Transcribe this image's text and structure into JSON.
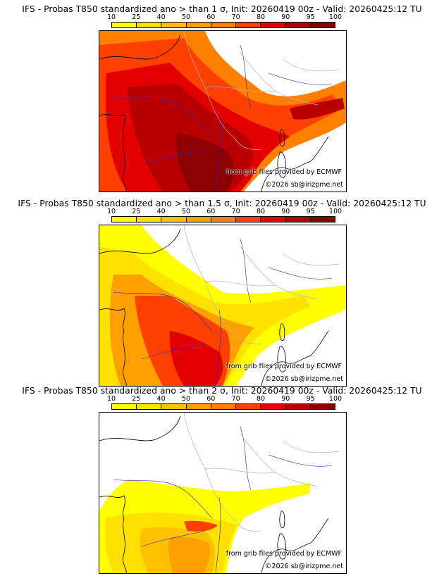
{
  "colors": {
    "scale": [
      "#ffff00",
      "#ffe100",
      "#ffc000",
      "#ff9f00",
      "#ff7f00",
      "#ff4000",
      "#e30000",
      "#b80000",
      "#8c0000",
      "#5c0000"
    ],
    "land_outline": "#000000",
    "rivers": "#2222cc",
    "borders": "#b4b4b4"
  },
  "scale_labels": [
    "10",
    "25",
    "40",
    "50",
    "60",
    "70",
    "80",
    "90",
    "95",
    "100"
  ],
  "panels": [
    {
      "title": "IFS - Probas T850  standardized ano > than 1 σ, Init: 20260419 00z - Valid: 20260425:12 TU",
      "sigma": 1,
      "source_text": "from grib files provided by ECMWF",
      "copyright": "©2026 sb@irizpme.net"
    },
    {
      "title": "IFS - Probas T850  standardized ano > than 1.5 σ, Init: 20260419 00z - Valid: 20260425:12 TU",
      "sigma": 1.5,
      "source_text": "from grib files provided by ECMWF",
      "copyright": "©2026 sb@irizpme.net"
    },
    {
      "title": "IFS - Probas T850  standardized ano > than 2 σ, Init: 20260419 00z - Valid: 20260425:12 TU",
      "sigma": 2,
      "source_text": "from grib files provided by ECMWF",
      "copyright": "©2026 sb@irizpme.net"
    }
  ]
}
